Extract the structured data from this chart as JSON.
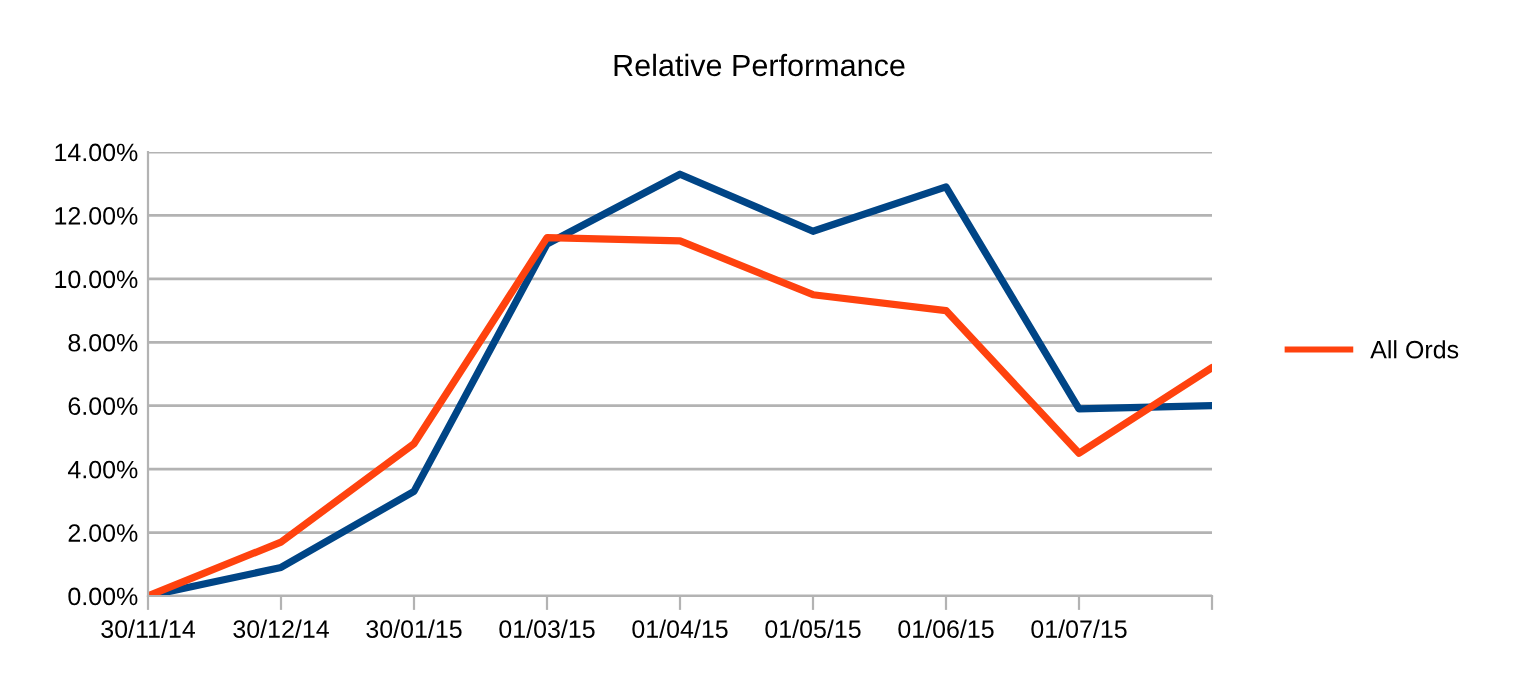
{
  "chart_data": {
    "type": "line",
    "title": "Relative Performance",
    "categories": [
      "30/11/14",
      "30/12/14",
      "30/01/15",
      "01/03/15",
      "01/04/15",
      "01/05/15",
      "01/06/15",
      "01/07/15",
      null
    ],
    "series": [
      {
        "color": "#004586",
        "values": [
          0,
          0.9,
          3.3,
          11.1,
          13.3,
          11.5,
          12.9,
          5.9,
          6.0
        ]
      },
      {
        "name": "All Ords",
        "color": "#ff420e",
        "values": [
          0,
          1.7,
          4.8,
          11.3,
          11.2,
          9.5,
          9.0,
          4.5,
          7.2
        ]
      }
    ],
    "ylim": [
      0,
      14
    ],
    "yticks": [
      {
        "value": 0,
        "label": "0.00%"
      },
      {
        "value": 2,
        "label": "2.00%"
      },
      {
        "value": 4,
        "label": "4.00%"
      },
      {
        "value": 6,
        "label": "6.00%"
      },
      {
        "value": 8,
        "label": "8.00%"
      },
      {
        "value": 10,
        "label": "10.00%"
      },
      {
        "value": 12,
        "label": "12.00%"
      },
      {
        "value": 14,
        "label": "14.00%"
      }
    ],
    "grid": "y",
    "legend": "right",
    "marker": "none",
    "line_style": "solid"
  }
}
